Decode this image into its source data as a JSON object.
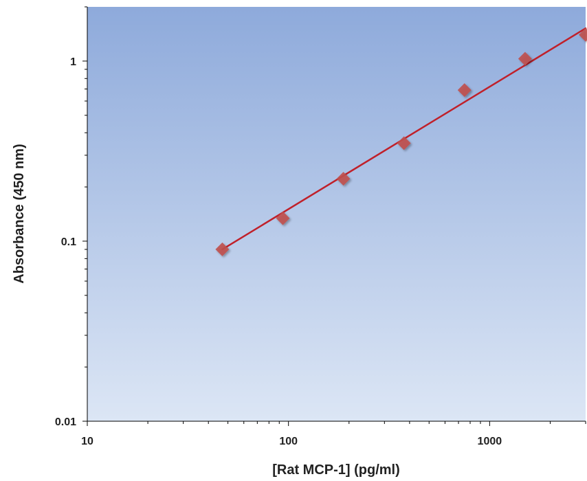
{
  "chart_data": {
    "type": "scatter",
    "title": "",
    "xlabel": "[Rat MCP-1] (pg/ml)",
    "ylabel": "Absorbance (450 nm)",
    "x_scale": "log",
    "y_scale": "log",
    "xlim": [
      10,
      3000
    ],
    "ylim": [
      0.01,
      2
    ],
    "x_ticks": [
      {
        "value": 10,
        "label": "10"
      },
      {
        "value": 100,
        "label": "100"
      },
      {
        "value": 1000,
        "label": "1000"
      }
    ],
    "y_ticks": [
      {
        "value": 0.01,
        "label": "0.01"
      },
      {
        "value": 0.1,
        "label": "0.1"
      },
      {
        "value": 1,
        "label": "1"
      }
    ],
    "grid": false,
    "legend": "none",
    "series": [
      {
        "marker": "diamond",
        "color": "#c0504d",
        "x": [
          46.9,
          93.8,
          187.5,
          375,
          750,
          1500,
          3000
        ],
        "y": [
          0.09,
          0.134,
          0.222,
          0.35,
          0.69,
          1.03,
          1.4
        ]
      }
    ],
    "fit_line": {
      "color": "#c0202a",
      "x": [
        46.9,
        3000
      ],
      "y": [
        0.09,
        1.52
      ]
    },
    "colors": {
      "plot_bg_top": "#8eaadb",
      "plot_bg_bottom": "#dce6f5"
    }
  }
}
